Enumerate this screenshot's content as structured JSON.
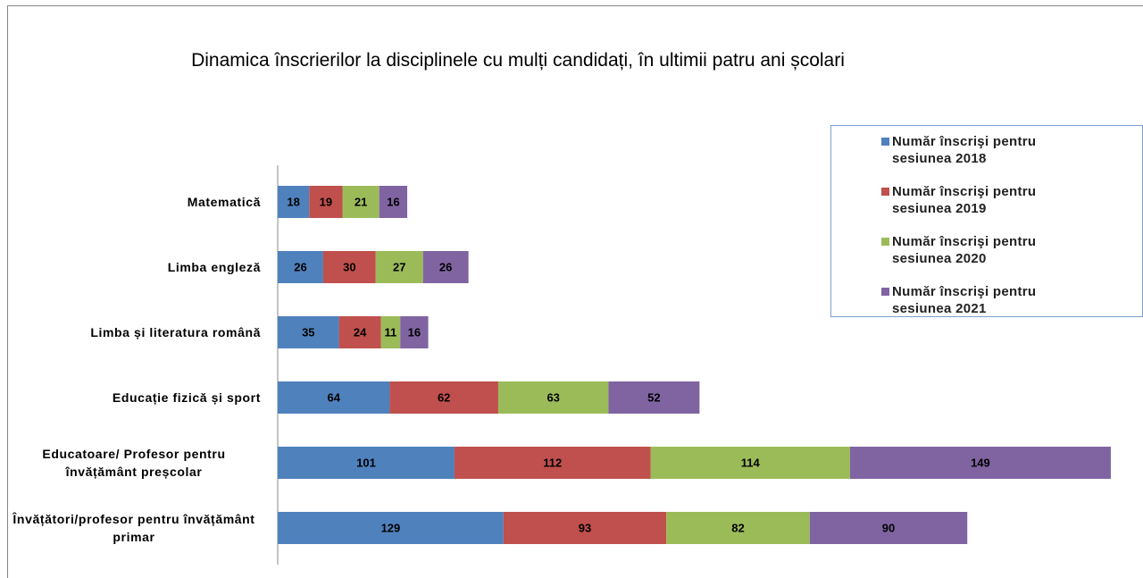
{
  "chart_data": {
    "type": "stacked-bar-horizontal",
    "title": "Dinamica înscrierilor la disciplinele cu mulți candidați, în ultimii patru ani școlari",
    "categories": [
      "Matematică",
      "Limba engleză",
      "Limba și literatura română",
      "Educație fizică și sport",
      "Educatoare/ Profesor pentru învățământ preșcolar",
      "Învățători/profesor pentru învățământ primar"
    ],
    "series": [
      {
        "name": "Număr înscrişi pentru sesiunea 2018",
        "color": "#4f81bd",
        "values": [
          18,
          26,
          35,
          64,
          101,
          129
        ]
      },
      {
        "name": "Număr înscrişi pentru sesiunea 2019",
        "color": "#c0504d",
        "values": [
          19,
          30,
          24,
          62,
          112,
          93
        ]
      },
      {
        "name": "Număr înscrişi pentru sesiunea 2020",
        "color": "#9bbb59",
        "values": [
          21,
          27,
          11,
          63,
          114,
          82
        ]
      },
      {
        "name": "Număr înscrişi pentru sesiunea 2021",
        "color": "#8064a2",
        "values": [
          16,
          26,
          16,
          52,
          149,
          90
        ]
      }
    ],
    "legend": "right"
  }
}
